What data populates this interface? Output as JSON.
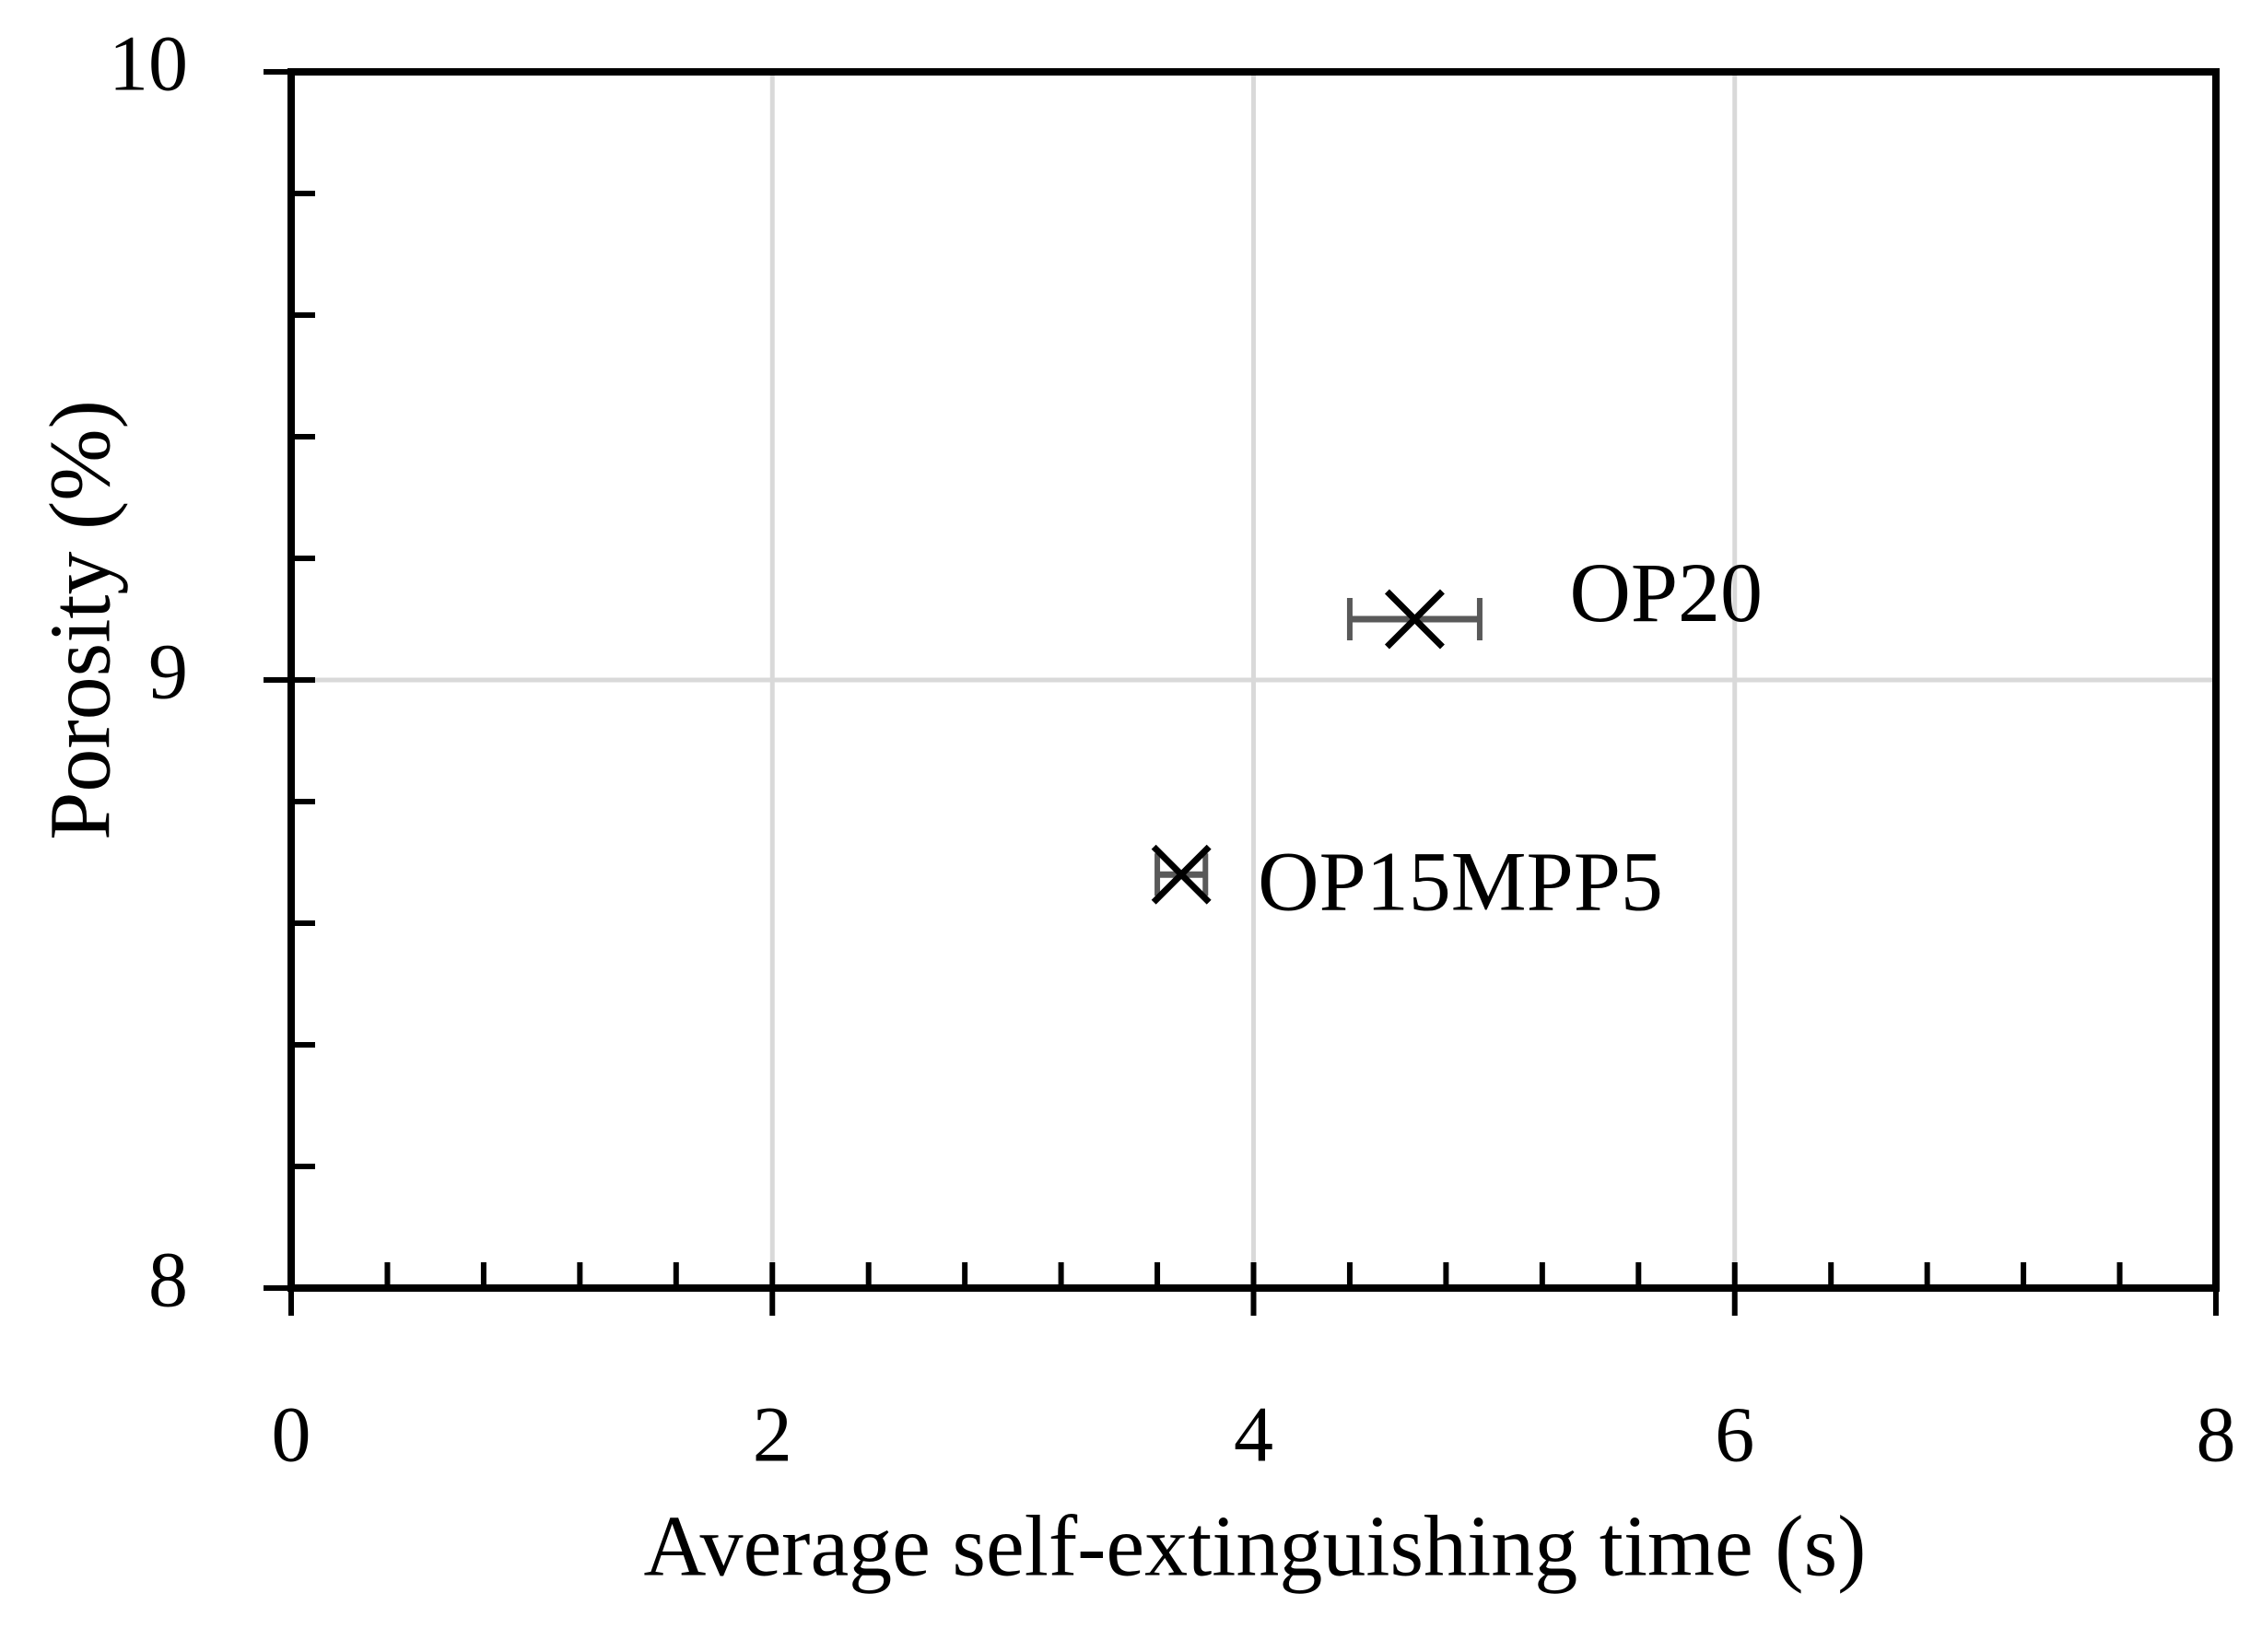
{
  "chart_data": {
    "type": "scatter",
    "x_label": "Average self-extinguishing time (s)",
    "y_label": "Porosity (%)",
    "series": [
      {
        "x": [
          4.67,
          3.7
        ],
        "y": [
          9.1,
          8.68
        ],
        "xerr": [
          0.27,
          0.1
        ],
        "point_labels": [
          "OP20",
          "OP15MPP5"
        ],
        "color": "#000000",
        "error_color": "#595959"
      }
    ],
    "xlim": [
      0,
      8
    ],
    "xticks": [
      0,
      2,
      4,
      6,
      8
    ],
    "xminorticks": [
      0.4,
      0.8,
      1.2,
      1.6,
      2.4,
      2.8,
      3.2,
      3.6,
      4.4,
      4.8,
      5.2,
      5.6,
      6.4,
      6.8,
      7.2,
      7.6
    ],
    "ylim": [
      8,
      10
    ],
    "yticks": [
      8,
      9,
      10
    ],
    "yminorticks": [
      8.2,
      8.4,
      8.6,
      8.8,
      9.2,
      9.4,
      9.6,
      9.8
    ],
    "grid": true
  }
}
